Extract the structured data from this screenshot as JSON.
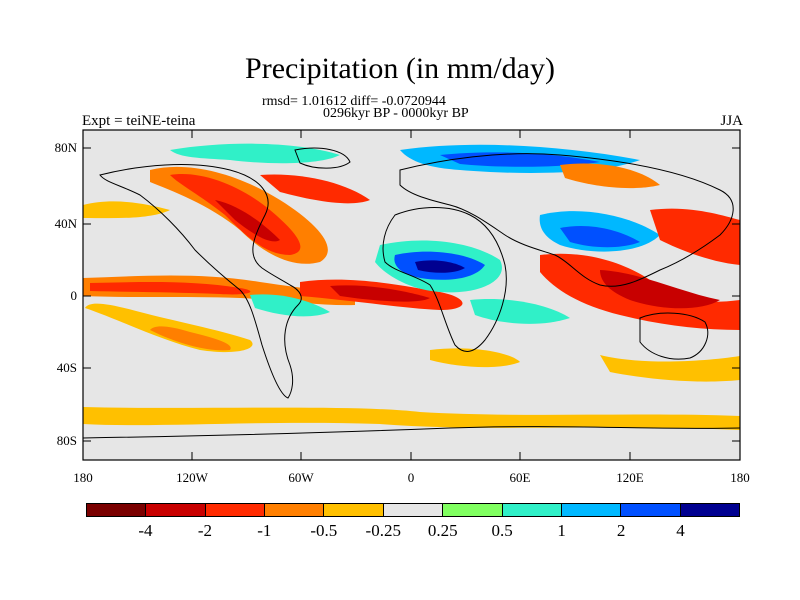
{
  "title": "Precipitation (in mm/day)",
  "stats": "rmsd= 1.01612 diff= -0.0720944",
  "period": "0296kyr BP - 0000kyr BP",
  "expt": "Expt = teiNE-teina",
  "season": "JJA",
  "y_ticks": [
    "80N",
    "40N",
    "0",
    "40S",
    "80S"
  ],
  "x_ticks": [
    "180",
    "120W",
    "60W",
    "0",
    "60E",
    "120E",
    "180"
  ],
  "colorbar": {
    "colors": [
      "#7a0000",
      "#c80000",
      "#ff2a00",
      "#ff7f00",
      "#ffc000",
      "#e6e6e6",
      "#80ff60",
      "#30f0c8",
      "#00b8ff",
      "#0050ff",
      "#000090"
    ],
    "labels": [
      "-4",
      "-2",
      "-1",
      "-0.5",
      "-0.25",
      "0.25",
      "0.5",
      "1",
      "2",
      "4"
    ]
  }
}
